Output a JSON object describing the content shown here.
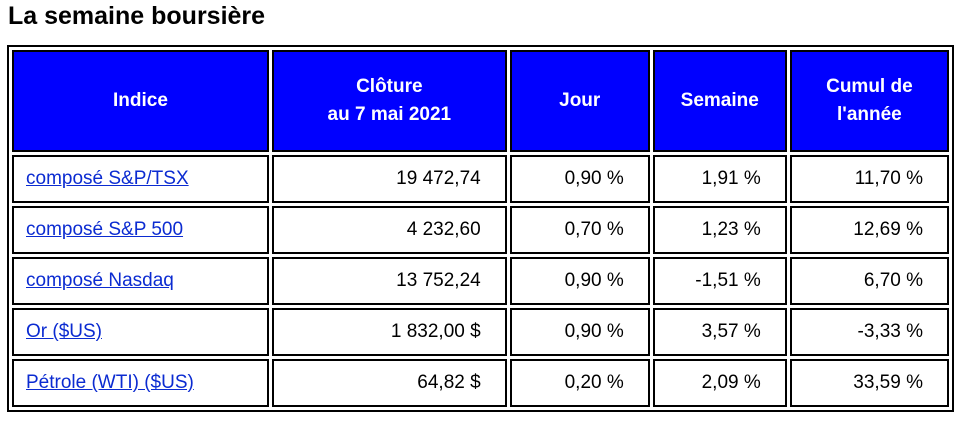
{
  "header": {
    "title": "La semaine boursière"
  },
  "table": {
    "headers": [
      "Indice",
      "Clôture\nau 7 mai 2021",
      "Jour",
      "Semaine",
      "Cumul de\nl'année"
    ],
    "rows": [
      [
        "composé S&P/TSX",
        "19 472,74",
        "0,90 %",
        "1,91 %",
        "11,70 %"
      ],
      [
        "composé S&P 500",
        "4 232,60",
        "0,70 %",
        "1,23 %",
        "12,69 %"
      ],
      [
        "composé Nasdaq",
        "13 752,24",
        "0,90 %",
        "-1,51 %",
        "6,70 %"
      ],
      [
        "Or ($US)",
        "1 832,00 $",
        "0,90 %",
        "3,57 %",
        "-3,33 %"
      ],
      [
        "Pétrole (WTI) ($US)",
        "64,82 $",
        "0,20 %",
        "2,09 %",
        "33,59 %"
      ]
    ]
  }
}
